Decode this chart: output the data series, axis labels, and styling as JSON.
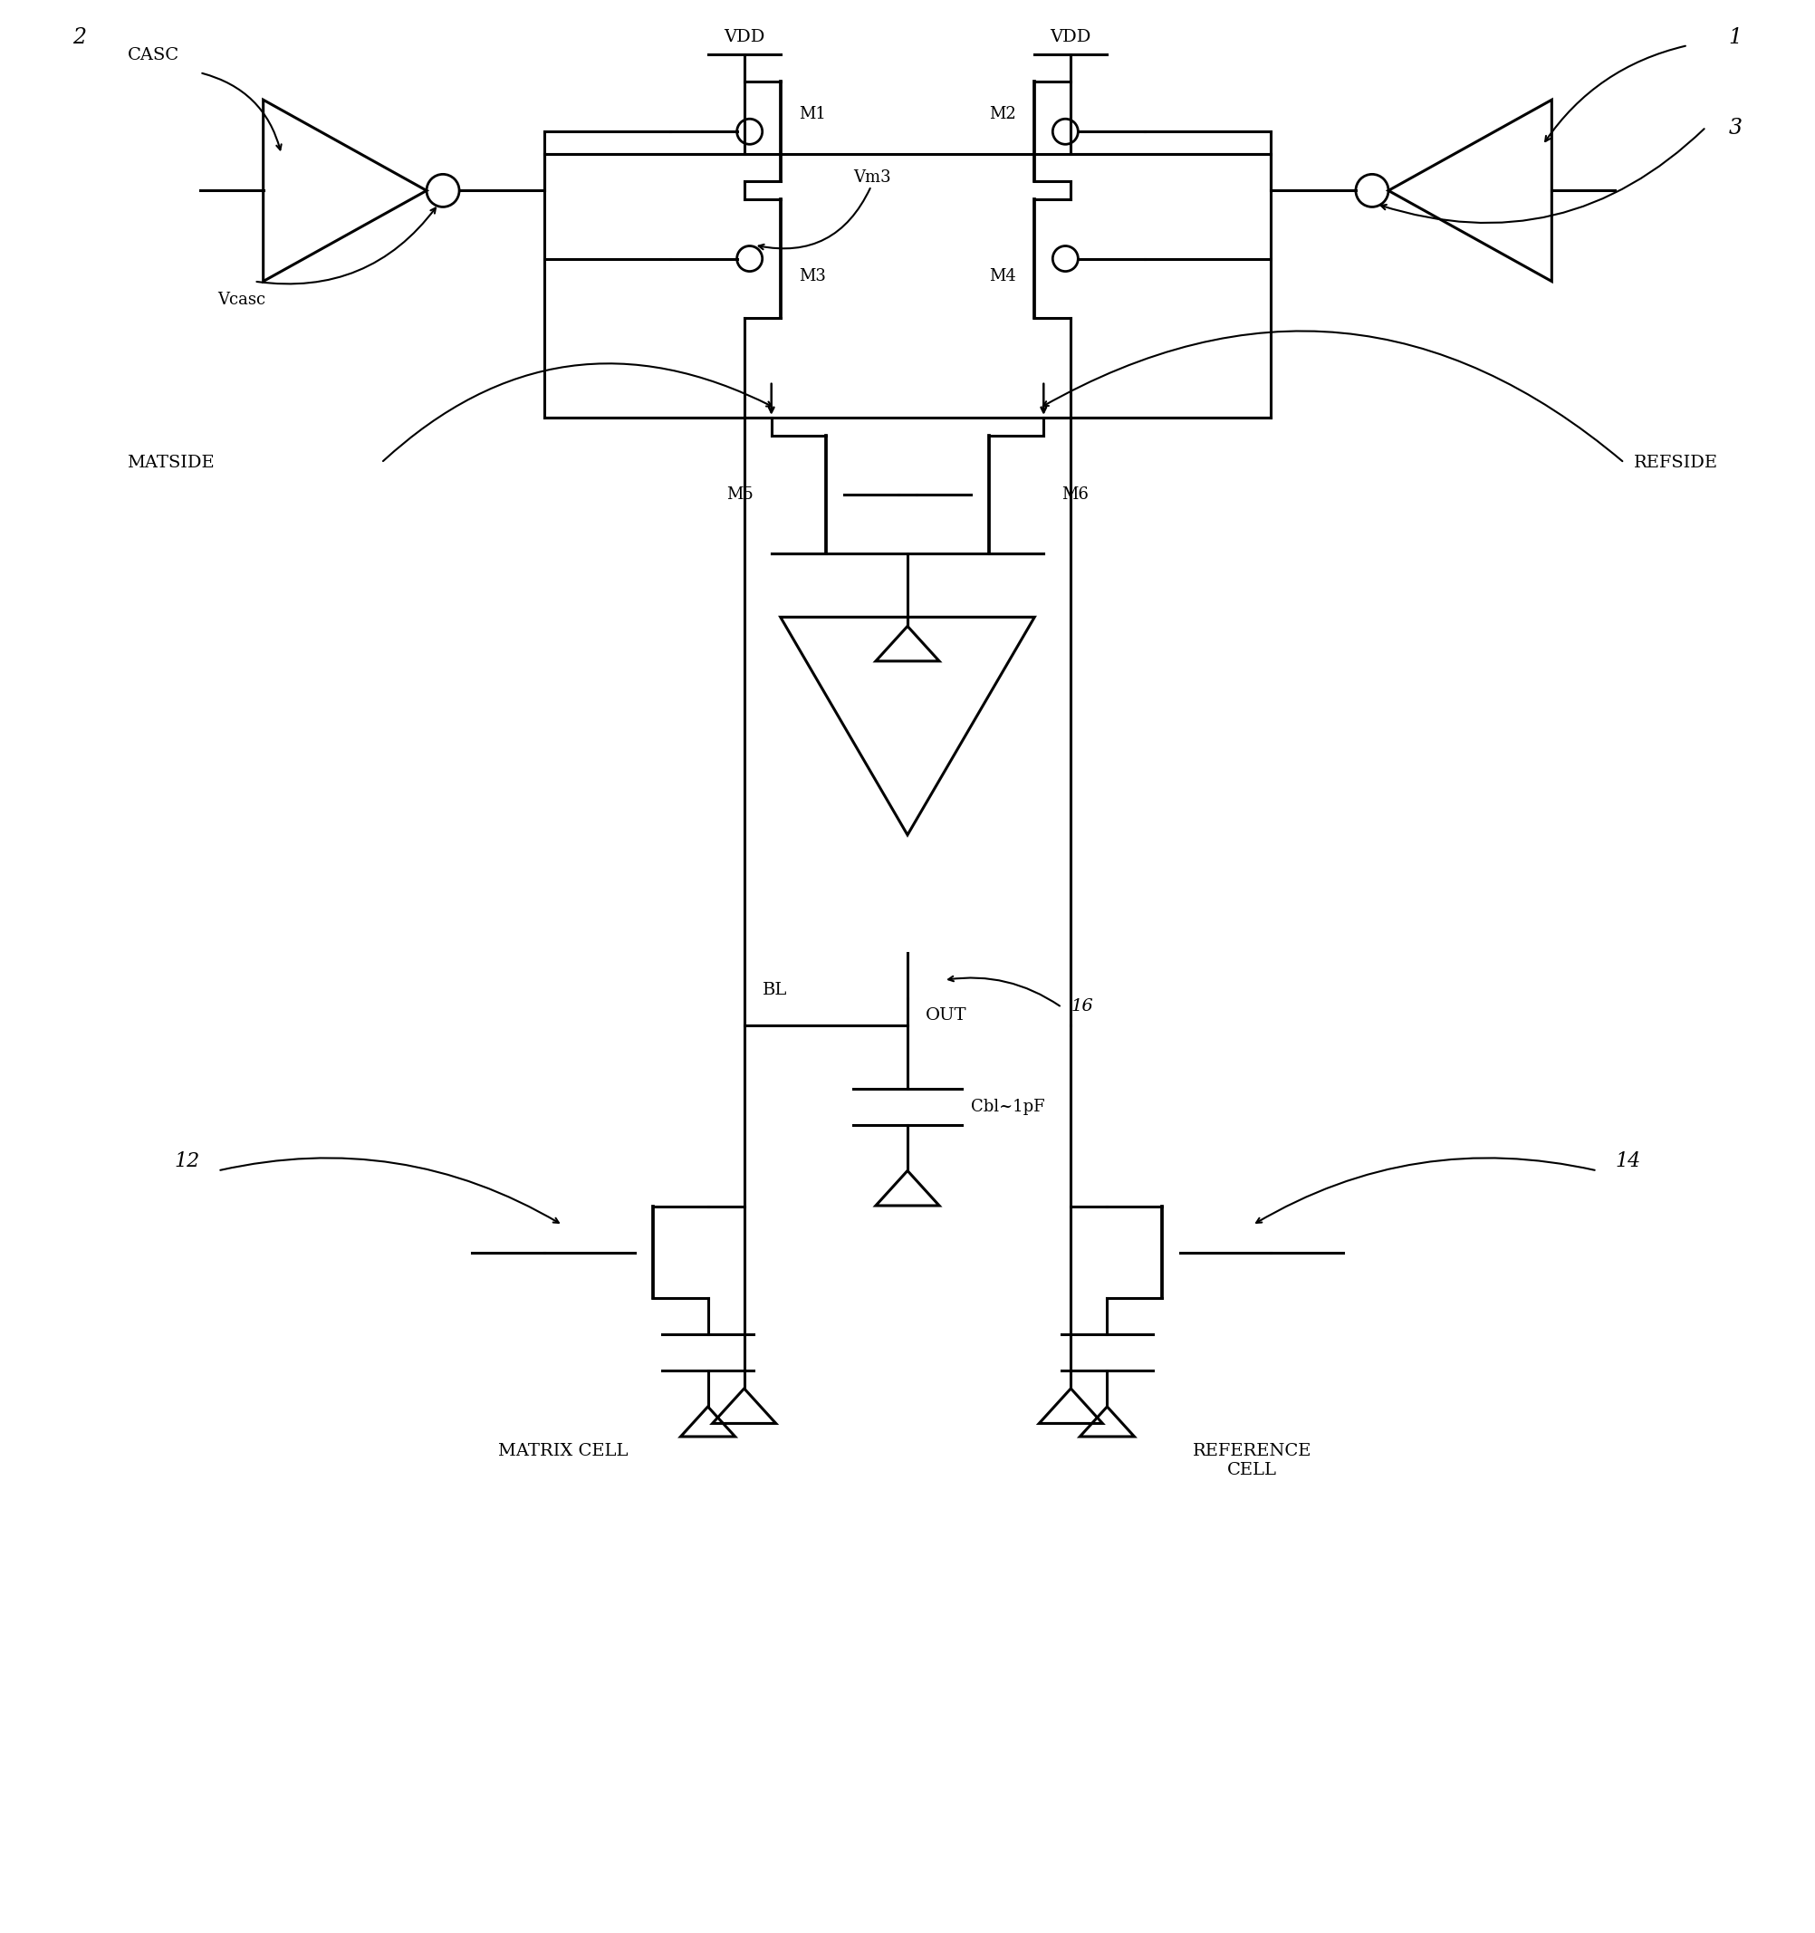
{
  "bg_color": "#ffffff",
  "line_color": "#000000",
  "lw": 2.2,
  "fig_width": 20.04,
  "fig_height": 21.34,
  "labels": {
    "VDD_left": "VDD",
    "VDD_right": "VDD",
    "M1": "M1",
    "M2": "M2",
    "M3": "M3",
    "M4": "M4",
    "M5": "M5",
    "M6": "M6",
    "CASC": "CASC",
    "Vcasc": "Vcasc",
    "Vm3": "Vm3",
    "MATSIDE": "MATSIDE",
    "REFSIDE": "REFSIDE",
    "BL": "BL",
    "OUT": "OUT",
    "Cbl": "Cbl~1pF",
    "MATRIX_CELL": "MATRIX CELL",
    "REFERENCE_CELL": "REFERENCE\nCELL",
    "num1": "1",
    "num2": "2",
    "num3": "3",
    "num12": "12",
    "num14": "14",
    "num16": "16"
  },
  "font_size": 14
}
